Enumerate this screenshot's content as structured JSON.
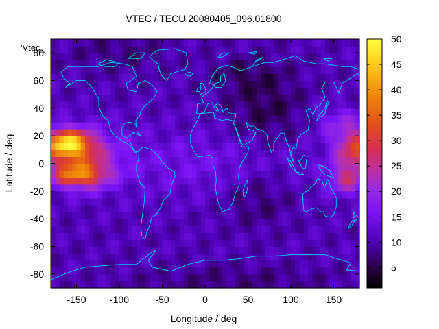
{
  "chart_data": {
    "type": "heatmap",
    "title": "VTEC / TECU 20080405_096.01800",
    "xlabel": "Longitude / deg",
    "ylabel": "Latitude / deg",
    "key_label": "'Vtec_",
    "xlim": [
      -180,
      180
    ],
    "ylim": [
      -90,
      90
    ],
    "x_ticks": [
      -150,
      -100,
      -50,
      0,
      50,
      100,
      150
    ],
    "y_ticks": [
      -80,
      -60,
      -40,
      -20,
      0,
      20,
      40,
      60,
      80
    ],
    "colorbar": {
      "range": [
        1,
        50
      ],
      "ticks": [
        5,
        10,
        15,
        20,
        25,
        30,
        35,
        40,
        45,
        50
      ],
      "palette": "black-blue-purple-red-orange-yellow"
    },
    "grid": false,
    "coastline_color": "#00bfff",
    "grid_resolution_deg": {
      "lon": 5,
      "lat": 5
    },
    "description": "Vertical total electron content map; equatorial anomaly crests of ~30-48 TECU over the central Pacific (-180 to -100 lon, -20 to 30 lat) and ~25-35 TECU over the western Pacific (140 to 180 lon); background ~8-15 TECU elsewhere, lowest ~4-7 TECU over Asia/Indian Ocean and polar regions."
  }
}
